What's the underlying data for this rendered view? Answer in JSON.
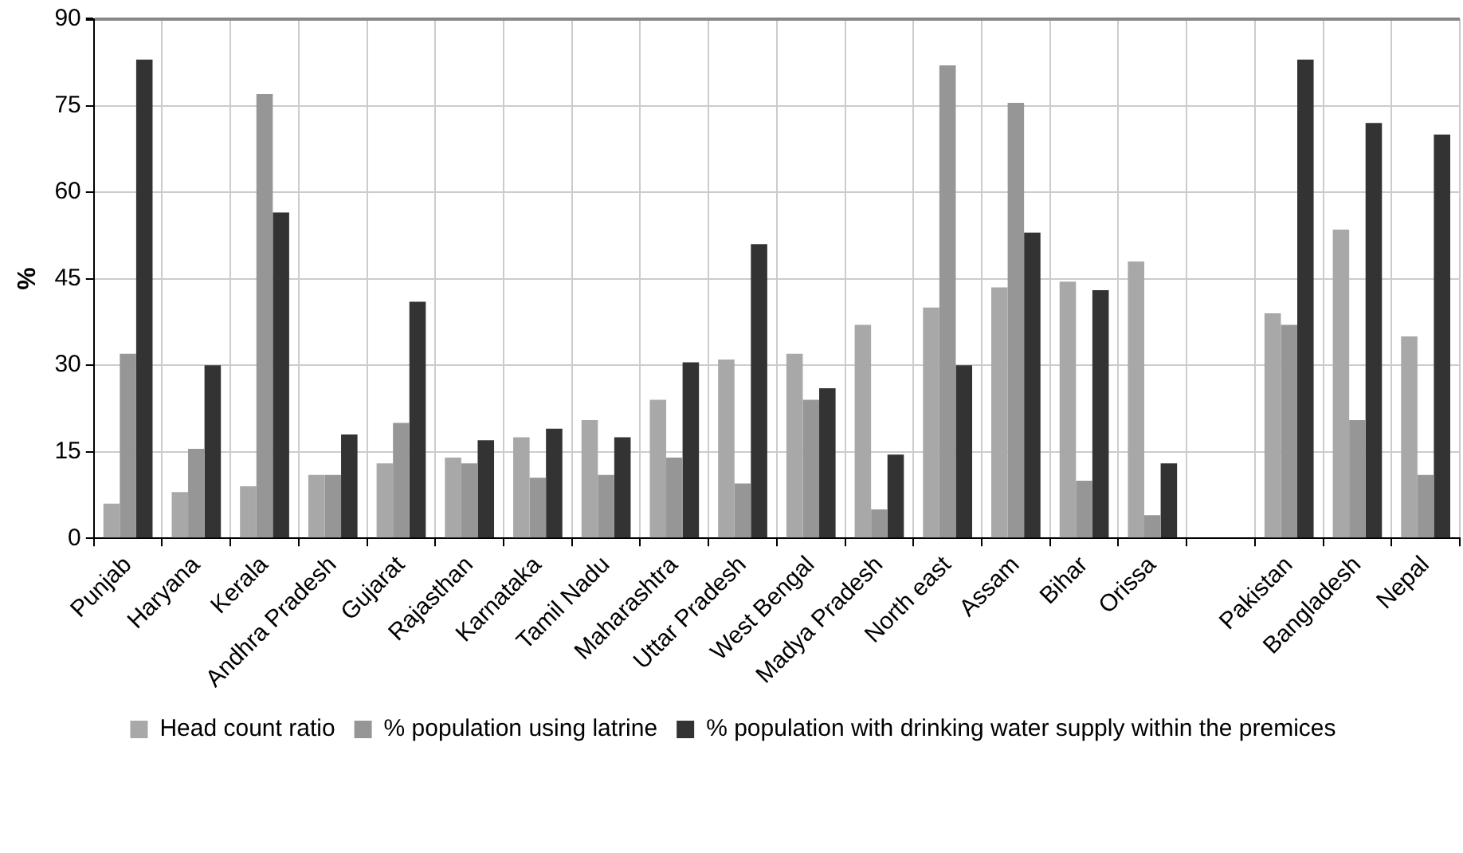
{
  "chart_data": {
    "type": "bar",
    "ylabel": "%",
    "categories": [
      "Punjab",
      "Haryana",
      "Kerala",
      "Andhra Pradesh",
      "Gujarat",
      "Rajasthan",
      "Karnataka",
      "Tamil Nadu",
      "Maharashtra",
      "Uttar Pradesh",
      "West Bengal",
      "Madya Pradesh",
      "North east",
      "Assam",
      "Bihar",
      "Orissa",
      null,
      "Pakistan",
      "Bangladesh",
      "Nepal"
    ],
    "series": [
      {
        "name": "Head count ratio",
        "color": "#a8a8a8",
        "values": [
          6,
          8,
          9,
          11,
          13,
          14,
          17.5,
          20.5,
          24,
          31,
          32,
          37,
          40,
          43.5,
          44.5,
          48,
          null,
          39,
          53.5,
          35
        ]
      },
      {
        "name": "% population using latrine",
        "color": "#969696",
        "values": [
          32,
          15.5,
          77,
          11,
          20,
          13,
          10.5,
          11,
          14,
          9.5,
          24,
          5,
          82,
          75.5,
          10,
          4,
          null,
          37,
          20.5,
          11
        ]
      },
      {
        "name": "% population with drinking water supply within the premices",
        "color": "#333333",
        "values": [
          83,
          30,
          56.5,
          18,
          41,
          17,
          19,
          17.5,
          30.5,
          51,
          26,
          14.5,
          30,
          53,
          43,
          13,
          null,
          83,
          72,
          70
        ]
      }
    ],
    "ylim": [
      0,
      90
    ],
    "yticks": [
      0,
      15,
      30,
      45,
      60,
      75,
      90
    ],
    "grid": true,
    "legend": "bottom"
  }
}
